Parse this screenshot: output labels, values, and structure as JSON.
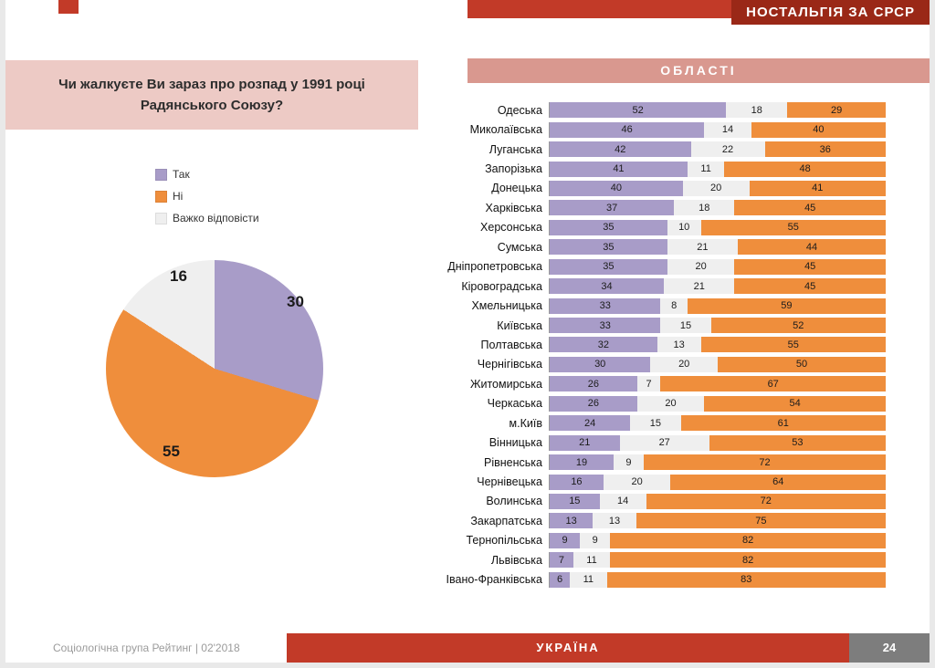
{
  "header": {
    "title": "НОСТАЛЬГІЯ ЗА СРСР"
  },
  "question": {
    "text": "Чи жалкуєте Ви зараз про розпад у 1991 році Радянського Союзу?"
  },
  "regions_header": "ОБЛАСТІ",
  "legend": [
    {
      "key": "yes",
      "label": "Так",
      "color": "#a89cc8"
    },
    {
      "key": "no",
      "label": "Ні",
      "color": "#ef8e3c"
    },
    {
      "key": "hard",
      "label": "Важко відповісти",
      "color": "#efefef"
    }
  ],
  "colors": {
    "yes": "#a89cc8",
    "no": "#ef8e3c",
    "hard": "#efefef",
    "banner_red": "#c23a28",
    "banner_dark_red": "#9a2817",
    "header_pink": "#d9988f",
    "question_pink": "#edcac5",
    "page_box_gray": "#7d7d7d"
  },
  "chart_data": [
    {
      "type": "pie",
      "title": "Чи жалкуєте Ви зараз про розпад у 1991 році Радянського Союзу?",
      "labels": [
        "Так",
        "Ні",
        "Важко відповісти"
      ],
      "values": [
        30,
        55,
        16
      ],
      "colors": [
        "#a89cc8",
        "#ef8e3c",
        "#efefef"
      ],
      "start_angle_deg": 0,
      "direction": "clockwise",
      "legend_position": "above-left"
    },
    {
      "type": "bar",
      "stacked": true,
      "orientation": "horizontal",
      "unit": "percent",
      "title": "ОБЛАСТІ",
      "xlim": [
        0,
        100
      ],
      "categories": [
        "Одеська",
        "Миколаївська",
        "Луганська",
        "Запорізька",
        "Донецька",
        "Харківська",
        "Херсонська",
        "Сумська",
        "Дніпропетровська",
        "Кіровоградська",
        "Хмельницька",
        "Київська",
        "Полтавська",
        "Чернігівська",
        "Житомирська",
        "Черкаська",
        "м.Київ",
        "Вінницька",
        "Рівненська",
        "Чернівецька",
        "Волинська",
        "Закарпатська",
        "Тернопільська",
        "Львівська",
        "Івано-Франківська"
      ],
      "series": [
        {
          "name": "Так",
          "key": "yes",
          "color": "#a89cc8",
          "values": [
            52,
            46,
            42,
            41,
            40,
            37,
            35,
            35,
            35,
            34,
            33,
            33,
            32,
            30,
            26,
            26,
            24,
            21,
            19,
            16,
            15,
            13,
            9,
            7,
            6
          ]
        },
        {
          "name": "Важко відповісти",
          "key": "hard",
          "color": "#efefef",
          "values": [
            18,
            14,
            22,
            11,
            20,
            18,
            10,
            21,
            20,
            21,
            8,
            15,
            13,
            20,
            7,
            20,
            15,
            27,
            9,
            20,
            14,
            13,
            9,
            11,
            11
          ]
        },
        {
          "name": "Ні",
          "key": "no",
          "color": "#ef8e3c",
          "values": [
            29,
            40,
            36,
            48,
            41,
            45,
            55,
            44,
            45,
            45,
            59,
            52,
            55,
            50,
            67,
            54,
            61,
            53,
            72,
            64,
            72,
            75,
            82,
            82,
            83
          ]
        }
      ]
    }
  ],
  "footer": {
    "source": "Соціологічна група Рейтинг  |  02'2018",
    "country": "УКРАЇНА",
    "page": "24"
  }
}
